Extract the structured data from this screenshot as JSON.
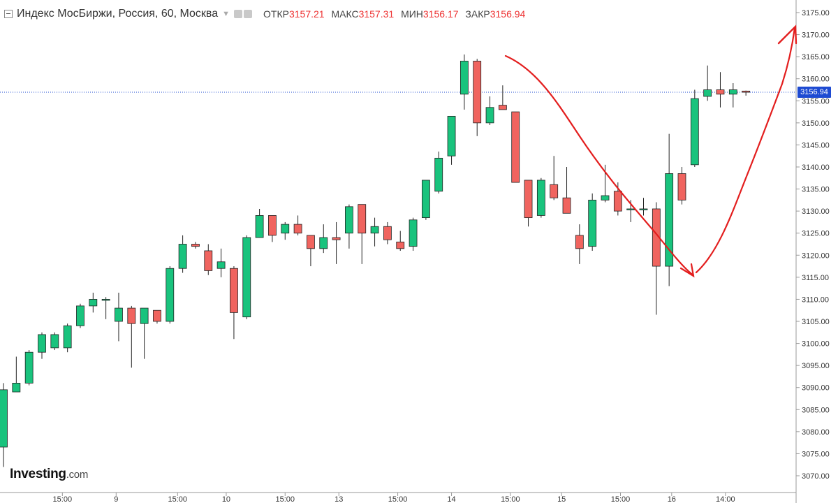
{
  "header": {
    "title": "Индекс МосБиржи, Россия, 60, Москва",
    "ohlc": {
      "open_label": "ОТКР",
      "open": "3157.21",
      "high_label": "МАКС",
      "high": "3157.31",
      "low_label": "МИН",
      "low": "3156.17",
      "close_label": "ЗАКР",
      "close": "3156.94"
    }
  },
  "logo": {
    "main": "Investing",
    "suffix": ".com"
  },
  "current_price_tag": "3156.94",
  "colors": {
    "up": "#19c37d",
    "down": "#f0645f",
    "annotation": "#e31e1e",
    "price_line": "#1e4bd2"
  },
  "chart_data": {
    "type": "candlestick",
    "ylim": [
      3067,
      3176
    ],
    "y_ticks": [
      "3170.00",
      "3165.00",
      "3160.00",
      "3155.00",
      "3150.00",
      "3145.00",
      "3140.00",
      "3135.00",
      "3130.00",
      "3125.00",
      "3120.00",
      "3115.00",
      "3110.00",
      "3105.00",
      "3100.00",
      "3095.00",
      "3090.00",
      "3085.00",
      "3080.00",
      "3075.00",
      "3070.00",
      "3175.00"
    ],
    "x_ticks": [
      {
        "label": "15:00",
        "index": 4.6
      },
      {
        "label": "9",
        "index": 8.8
      },
      {
        "label": "15:00",
        "index": 13.6
      },
      {
        "label": "10",
        "index": 17.4
      },
      {
        "label": "15:00",
        "index": 22.0
      },
      {
        "label": "13",
        "index": 26.2
      },
      {
        "label": "15:00",
        "index": 30.8
      },
      {
        "label": "14",
        "index": 35.0
      },
      {
        "label": "15:00",
        "index": 39.6
      },
      {
        "label": "15",
        "index": 43.6
      },
      {
        "label": "15:00",
        "index": 48.2
      },
      {
        "label": "16",
        "index": 52.2
      },
      {
        "label": "14:00",
        "index": 56.4
      }
    ],
    "candles": [
      {
        "o": 3076.5,
        "h": 3091.0,
        "l": 3072.0,
        "c": 3089.5
      },
      {
        "o": 3089.0,
        "h": 3097.0,
        "l": 3089.0,
        "c": 3091.0
      },
      {
        "o": 3091.0,
        "h": 3098.5,
        "l": 3090.5,
        "c": 3098.0
      },
      {
        "o": 3098.0,
        "h": 3102.5,
        "l": 3096.5,
        "c": 3102.0
      },
      {
        "o": 3099.0,
        "h": 3102.5,
        "l": 3098.5,
        "c": 3102.0
      },
      {
        "o": 3099.0,
        "h": 3104.5,
        "l": 3098.0,
        "c": 3104.0
      },
      {
        "o": 3104.0,
        "h": 3109.0,
        "l": 3103.5,
        "c": 3108.5
      },
      {
        "o": 3108.5,
        "h": 3111.5,
        "l": 3107.0,
        "c": 3110.0
      },
      {
        "o": 3110.0,
        "h": 3110.5,
        "l": 3105.5,
        "c": 3110.0
      },
      {
        "o": 3105.0,
        "h": 3111.5,
        "l": 3100.5,
        "c": 3108.0
      },
      {
        "o": 3108.0,
        "h": 3108.5,
        "l": 3094.5,
        "c": 3104.5
      },
      {
        "o": 3104.5,
        "h": 3108.0,
        "l": 3096.5,
        "c": 3108.0
      },
      {
        "o": 3107.5,
        "h": 3107.5,
        "l": 3104.5,
        "c": 3105.0
      },
      {
        "o": 3105.0,
        "h": 3117.5,
        "l": 3104.5,
        "c": 3117.0
      },
      {
        "o": 3117.0,
        "h": 3124.5,
        "l": 3116.0,
        "c": 3122.5
      },
      {
        "o": 3122.5,
        "h": 3123.0,
        "l": 3121.5,
        "c": 3122.0
      },
      {
        "o": 3121.0,
        "h": 3122.5,
        "l": 3115.5,
        "c": 3116.5
      },
      {
        "o": 3117.0,
        "h": 3121.5,
        "l": 3115.0,
        "c": 3118.5
      },
      {
        "o": 3117.0,
        "h": 3117.5,
        "l": 3101.0,
        "c": 3107.0
      },
      {
        "o": 3106.0,
        "h": 3124.5,
        "l": 3105.5,
        "c": 3124.0
      },
      {
        "o": 3124.0,
        "h": 3130.5,
        "l": 3124.0,
        "c": 3129.0
      },
      {
        "o": 3129.0,
        "h": 3129.0,
        "l": 3123.0,
        "c": 3124.5
      },
      {
        "o": 3125.0,
        "h": 3127.5,
        "l": 3123.5,
        "c": 3127.0
      },
      {
        "o": 3127.0,
        "h": 3129.0,
        "l": 3124.5,
        "c": 3125.0
      },
      {
        "o": 3124.5,
        "h": 3124.5,
        "l": 3117.5,
        "c": 3121.5
      },
      {
        "o": 3121.5,
        "h": 3127.0,
        "l": 3120.5,
        "c": 3124.0
      },
      {
        "o": 3124.0,
        "h": 3127.5,
        "l": 3118.0,
        "c": 3123.5
      },
      {
        "o": 3125.0,
        "h": 3131.5,
        "l": 3121.5,
        "c": 3131.0
      },
      {
        "o": 3131.5,
        "h": 3131.5,
        "l": 3118.0,
        "c": 3125.0
      },
      {
        "o": 3125.0,
        "h": 3128.5,
        "l": 3122.0,
        "c": 3126.5
      },
      {
        "o": 3126.5,
        "h": 3127.5,
        "l": 3122.5,
        "c": 3123.5
      },
      {
        "o": 3123.0,
        "h": 3125.5,
        "l": 3121.0,
        "c": 3121.5
      },
      {
        "o": 3122.0,
        "h": 3128.5,
        "l": 3121.0,
        "c": 3128.0
      },
      {
        "o": 3128.5,
        "h": 3137.0,
        "l": 3128.0,
        "c": 3137.0
      },
      {
        "o": 3134.5,
        "h": 3143.5,
        "l": 3134.0,
        "c": 3142.0
      },
      {
        "o": 3142.5,
        "h": 3151.5,
        "l": 3140.5,
        "c": 3151.5
      },
      {
        "o": 3156.5,
        "h": 3165.5,
        "l": 3153.0,
        "c": 3164.0
      },
      {
        "o": 3164.0,
        "h": 3164.5,
        "l": 3147.0,
        "c": 3150.0
      },
      {
        "o": 3150.0,
        "h": 3156.0,
        "l": 3149.5,
        "c": 3153.5
      },
      {
        "o": 3154.0,
        "h": 3158.5,
        "l": 3153.0,
        "c": 3153.0
      },
      {
        "o": 3152.5,
        "h": 3152.5,
        "l": 3136.5,
        "c": 3136.5
      },
      {
        "o": 3137.0,
        "h": 3137.0,
        "l": 3126.5,
        "c": 3128.5
      },
      {
        "o": 3129.0,
        "h": 3137.5,
        "l": 3128.5,
        "c": 3137.0
      },
      {
        "o": 3136.0,
        "h": 3142.5,
        "l": 3132.5,
        "c": 3133.0
      },
      {
        "o": 3133.0,
        "h": 3140.0,
        "l": 3129.5,
        "c": 3129.5
      },
      {
        "o": 3124.5,
        "h": 3127.0,
        "l": 3118.0,
        "c": 3121.5
      },
      {
        "o": 3122.0,
        "h": 3134.0,
        "l": 3121.0,
        "c": 3132.5
      },
      {
        "o": 3132.5,
        "h": 3140.5,
        "l": 3132.0,
        "c": 3133.5
      },
      {
        "o": 3134.5,
        "h": 3136.5,
        "l": 3129.0,
        "c": 3130.0
      },
      {
        "o": 3130.5,
        "h": 3132.5,
        "l": 3127.5,
        "c": 3130.5
      },
      {
        "o": 3130.5,
        "h": 3133.0,
        "l": 3129.0,
        "c": 3130.5
      },
      {
        "o": 3130.5,
        "h": 3132.0,
        "l": 3106.5,
        "c": 3117.5
      },
      {
        "o": 3117.5,
        "h": 3147.5,
        "l": 3113.0,
        "c": 3138.5
      },
      {
        "o": 3138.5,
        "h": 3140.0,
        "l": 3131.5,
        "c": 3132.5
      },
      {
        "o": 3140.5,
        "h": 3157.5,
        "l": 3140.0,
        "c": 3155.5
      },
      {
        "o": 3156.0,
        "h": 3163.0,
        "l": 3155.0,
        "c": 3157.5
      },
      {
        "o": 3157.5,
        "h": 3161.5,
        "l": 3153.5,
        "c": 3156.5
      },
      {
        "o": 3156.5,
        "h": 3159.0,
        "l": 3153.5,
        "c": 3157.5
      },
      {
        "o": 3157.21,
        "h": 3157.31,
        "l": 3156.17,
        "c": 3156.94
      }
    ]
  }
}
